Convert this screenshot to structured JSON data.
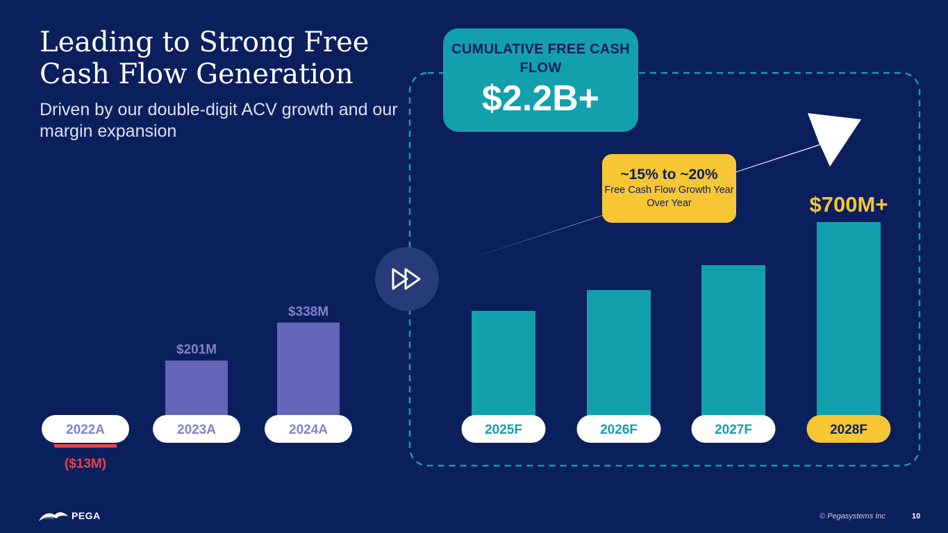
{
  "slide": {
    "title": "Leading to Strong Free Cash Flow Generation",
    "subtitle": "Driven by our double-digit ACV growth and our margin expansion"
  },
  "callout": {
    "label": "CUMULATIVE FREE CASH FLOW",
    "value": "$2.2B+"
  },
  "growth_box": {
    "value": "~15% to ~20%",
    "label": "Free Cash Flow Growth Year Over Year"
  },
  "icons": {
    "divider": "fast-forward-icon",
    "trend": "arrow-up-right-icon",
    "logo": "pega-logo"
  },
  "footer": {
    "logo_text": "PEGA",
    "copyright": "© Pegasystems Inc",
    "page_number": "10"
  },
  "colors": {
    "background": "#0b1f5c",
    "actual_bar": "#6366b9",
    "forecast_bar": "#13a0ad",
    "negative": "#e8434b",
    "highlight": "#f6c634",
    "actual_label": "#7f83cc"
  },
  "chart_data": {
    "type": "bar",
    "categories": [
      "2022A",
      "2023A",
      "2024A",
      "2025F",
      "2026F",
      "2027F",
      "2028F"
    ],
    "values": [
      -13,
      201,
      338,
      380,
      455,
      545,
      700
    ],
    "value_labels": [
      "($13M)",
      "$201M",
      "$338M",
      "",
      "",
      "",
      "$700M+"
    ],
    "units": "$M",
    "series_kind": [
      "actual",
      "actual",
      "actual",
      "forecast",
      "forecast",
      "forecast",
      "forecast"
    ],
    "highlighted_category": "2028F",
    "grid": false,
    "legend": "none"
  }
}
